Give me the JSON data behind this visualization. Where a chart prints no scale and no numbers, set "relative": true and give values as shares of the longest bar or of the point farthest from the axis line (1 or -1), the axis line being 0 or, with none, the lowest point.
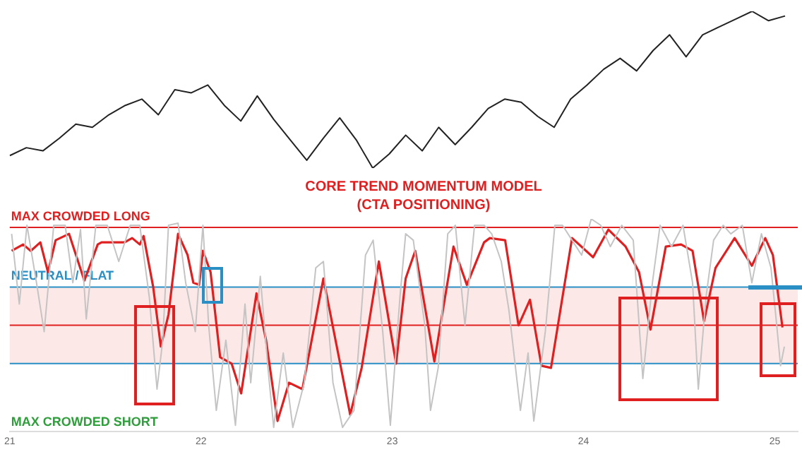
{
  "chart_data": [
    {
      "type": "line",
      "relative": true,
      "grid": false,
      "legend": false,
      "categories": [
        null,
        null,
        null,
        null,
        null,
        null,
        null,
        null,
        null,
        null,
        null,
        null,
        null,
        null,
        null,
        null,
        null,
        null,
        null,
        null,
        null,
        null,
        null,
        null,
        null,
        null,
        null,
        null,
        null,
        null,
        null,
        null,
        null,
        null,
        null,
        null,
        null,
        null,
        null,
        null,
        null,
        null,
        null,
        null,
        null,
        null,
        null,
        null
      ],
      "series": [
        {
          "color": "#222222",
          "values": [
            0.08,
            0.13,
            0.11,
            0.19,
            0.28,
            0.26,
            0.34,
            0.4,
            0.44,
            0.34,
            0.5,
            0.48,
            0.53,
            0.4,
            0.3,
            0.46,
            0.31,
            0.18,
            0.05,
            0.19,
            0.32,
            0.18,
            0,
            0.09,
            0.21,
            0.11,
            0.26,
            0.15,
            0.26,
            0.38,
            0.44,
            0.42,
            0.33,
            0.26,
            0.44,
            0.53,
            0.63,
            0.7,
            0.62,
            0.75,
            0.85,
            0.71,
            0.85,
            0.9,
            0.95,
            1,
            0.94,
            0.97
          ]
        }
      ]
    },
    {
      "type": "line",
      "relative": true,
      "title": "CORE TREND MOMENTUM MODEL\n(CTA POSITIONING)",
      "grid": false,
      "legend": false,
      "xlim": [
        2021,
        2025.12
      ],
      "xticks": [
        {
          "value": 2021,
          "label": "21"
        },
        {
          "value": 2022,
          "label": "22"
        },
        {
          "value": 2023,
          "label": "23"
        },
        {
          "value": 2024,
          "label": "24"
        },
        {
          "value": 2025,
          "label": "25"
        }
      ],
      "bands": [
        {
          "axis": "y",
          "from": 0.32,
          "to": 0.68,
          "label": null,
          "color": "#fde8e8"
        }
      ],
      "ref_lines": [
        {
          "axis": "y",
          "value": 0.96,
          "label": "MAX CROWDED LONG",
          "color": "#e02020"
        },
        {
          "axis": "y",
          "value": 0.68,
          "label": "NEUTRAL / FLAT",
          "color": "#2a8fc4"
        },
        {
          "axis": "y",
          "value": 0.5,
          "label": null,
          "color": "#e02020"
        },
        {
          "axis": "y",
          "value": 0.32,
          "label": null,
          "color": "#2a8fc4"
        }
      ],
      "annotations": [
        "MAX CROWDED SHORT"
      ],
      "series": [
        {
          "color": "#c4c4c4",
          "x": [
            2021.01,
            2021.05,
            2021.09,
            2021.14,
            2021.18,
            2021.23,
            2021.29,
            2021.33,
            2021.37,
            2021.4,
            2021.45,
            2021.51,
            2021.57,
            2021.63,
            2021.68,
            2021.73,
            2021.77,
            2021.8,
            2021.83,
            2021.88,
            2021.92,
            2021.97,
            2022.01,
            2022.04,
            2022.08,
            2022.13,
            2022.18,
            2022.23,
            2022.26,
            2022.31,
            2022.35,
            2022.38,
            2022.43,
            2022.48,
            2022.54,
            2022.6,
            2022.64,
            2022.69,
            2022.74,
            2022.8,
            2022.86,
            2022.9,
            2022.95,
            2022.99,
            2023.04,
            2023.07,
            2023.11,
            2023.17,
            2023.2,
            2023.24,
            2023.29,
            2023.33,
            2023.38,
            2023.43,
            2023.48,
            2023.52,
            2023.57,
            2023.61,
            2023.67,
            2023.71,
            2023.74,
            2023.8,
            2023.85,
            2023.89,
            2023.94,
            2023.99,
            2024.04,
            2024.09,
            2024.14,
            2024.2,
            2024.26,
            2024.31,
            2024.36,
            2024.4,
            2024.46,
            2024.52,
            2024.57,
            2024.6,
            2024.64,
            2024.68,
            2024.73,
            2024.77,
            2024.83,
            2024.88,
            2024.93,
            2024.98,
            2025.01,
            2025.03,
            2025.05
          ],
          "values": [
            0.93,
            0.6,
            0.97,
            0.7,
            0.47,
            0.97,
            0.97,
            0.7,
            0.95,
            0.53,
            0.97,
            0.97,
            0.8,
            0.97,
            0.97,
            0.63,
            0.2,
            0.43,
            0.97,
            0.98,
            0.7,
            0.47,
            0.97,
            0.5,
            0.1,
            0.43,
            0.03,
            0.6,
            0.23,
            0.73,
            0.3,
            0.02,
            0.37,
            0.02,
            0.23,
            0.77,
            0.8,
            0.23,
            0.02,
            0.1,
            0.83,
            0.9,
            0.47,
            0.03,
            0.63,
            0.93,
            0.9,
            0.5,
            0.1,
            0.3,
            0.93,
            0.97,
            0.5,
            0.97,
            0.97,
            0.93,
            0.8,
            0.57,
            0.1,
            0.37,
            0.05,
            0.47,
            0.97,
            0.97,
            0.9,
            0.83,
            1,
            0.97,
            0.87,
            0.97,
            0.9,
            0.25,
            0.7,
            0.97,
            0.87,
            0.97,
            0.7,
            0.2,
            0.63,
            0.9,
            0.97,
            0.93,
            0.97,
            0.7,
            0.93,
            0.77,
            0.5,
            0.31,
            0.4
          ]
        },
        {
          "color": "#e02020",
          "x": [
            2021.01,
            2021.07,
            2021.11,
            2021.16,
            2021.2,
            2021.24,
            2021.31,
            2021.39,
            2021.46,
            2021.48,
            2021.6,
            2021.64,
            2021.68,
            2021.7,
            2021.75,
            2021.79,
            2021.83,
            2021.88,
            2021.93,
            2021.96,
            2021.99,
            2022.01,
            2022.05,
            2022.1,
            2022.16,
            2022.21,
            2022.29,
            2022.34,
            2022.4,
            2022.46,
            2022.53,
            2022.64,
            2022.71,
            2022.78,
            2022.84,
            2022.93,
            2023.02,
            2023.07,
            2023.12,
            2023.22,
            2023.32,
            2023.39,
            2023.48,
            2023.51,
            2023.59,
            2023.66,
            2023.72,
            2023.78,
            2023.83,
            2023.94,
            2024.05,
            2024.13,
            2024.22,
            2024.29,
            2024.35,
            2024.43,
            2024.51,
            2024.57,
            2024.63,
            2024.69,
            2024.79,
            2024.88,
            2024.95,
            2024.99,
            2025.04
          ],
          "values": [
            0.85,
            0.88,
            0.85,
            0.89,
            0.75,
            0.9,
            0.93,
            0.71,
            0.88,
            0.89,
            0.89,
            0.91,
            0.88,
            0.92,
            0.68,
            0.4,
            0.55,
            0.93,
            0.83,
            0.7,
            0.69,
            0.85,
            0.75,
            0.35,
            0.32,
            0.18,
            0.65,
            0.43,
            0.05,
            0.23,
            0.2,
            0.72,
            0.4,
            0.08,
            0.3,
            0.8,
            0.32,
            0.72,
            0.85,
            0.33,
            0.87,
            0.69,
            0.89,
            0.91,
            0.9,
            0.5,
            0.62,
            0.31,
            0.3,
            0.91,
            0.82,
            0.95,
            0.87,
            0.75,
            0.48,
            0.87,
            0.88,
            0.85,
            0.52,
            0.77,
            0.91,
            0.78,
            0.91,
            0.83,
            0.49
          ]
        }
      ]
    }
  ]
}
